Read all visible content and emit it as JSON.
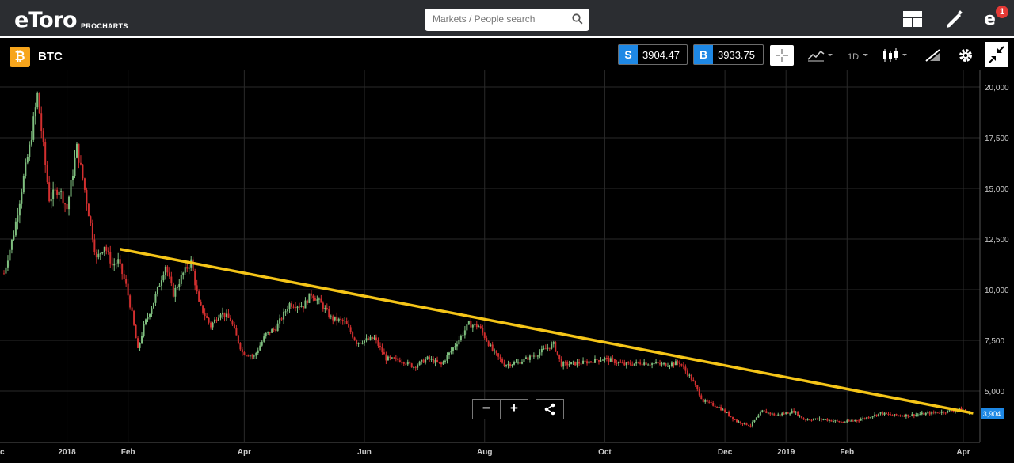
{
  "header": {
    "logo_text": "eToro",
    "logo_sub": "PROCHARTS",
    "search_placeholder": "Markets / People search",
    "notification_count": "1"
  },
  "toolbar": {
    "symbol": "BTC",
    "sell_label": "S",
    "sell_price": "3904.47",
    "buy_label": "B",
    "buy_price": "3933.75",
    "timeframe": "1D"
  },
  "colors": {
    "up_candle": "#7fbf7f",
    "down_candle": "#d32f2f",
    "trendline": "#f5c518",
    "price_tag": "#1e88e5",
    "grid": "#2a2a2a"
  },
  "chart_data": {
    "type": "candlestick",
    "title": "",
    "xlabel": "",
    "ylabel": "",
    "ylim": [
      2000,
      20800
    ],
    "x_ticks": [
      "c",
      "2018",
      "Feb",
      "Apr",
      "Jun",
      "Aug",
      "Oct",
      "Dec",
      "2019",
      "Feb",
      "Apr"
    ],
    "x_tick_dates": [
      "2017-12-01",
      "2018-01-01",
      "2018-02-01",
      "2018-04-01",
      "2018-06-01",
      "2018-08-01",
      "2018-10-01",
      "2018-12-01",
      "2019-01-01",
      "2019-02-01",
      "2019-04-01"
    ],
    "y_ticks": [
      "20,000",
      "17,500",
      "15,000",
      "12,500",
      "10,000",
      "7,500",
      "5,000"
    ],
    "y_tick_values": [
      20000,
      17500,
      15000,
      12500,
      10000,
      7500,
      5000
    ],
    "last_price_label": "3,904",
    "last_price": 3904,
    "close_series": [
      [
        "2017-11-30",
        10800
      ],
      [
        "2017-12-05",
        12800
      ],
      [
        "2017-12-10",
        15500
      ],
      [
        "2017-12-13",
        17000
      ],
      [
        "2017-12-17",
        19600
      ],
      [
        "2017-12-20",
        17000
      ],
      [
        "2017-12-23",
        14500
      ],
      [
        "2017-12-28",
        15000
      ],
      [
        "2018-01-01",
        14000
      ],
      [
        "2018-01-06",
        17000
      ],
      [
        "2018-01-09",
        15500
      ],
      [
        "2018-01-12",
        13800
      ],
      [
        "2018-01-16",
        11500
      ],
      [
        "2018-01-20",
        12200
      ],
      [
        "2018-01-24",
        11200
      ],
      [
        "2018-01-27",
        11400
      ],
      [
        "2018-01-31",
        10200
      ],
      [
        "2018-02-03",
        8800
      ],
      [
        "2018-02-06",
        7000
      ],
      [
        "2018-02-09",
        8200
      ],
      [
        "2018-02-14",
        9400
      ],
      [
        "2018-02-20",
        11200
      ],
      [
        "2018-02-24",
        9800
      ],
      [
        "2018-03-01",
        10800
      ],
      [
        "2018-03-05",
        11400
      ],
      [
        "2018-03-09",
        9300
      ],
      [
        "2018-03-15",
        8200
      ],
      [
        "2018-03-20",
        8900
      ],
      [
        "2018-03-25",
        8500
      ],
      [
        "2018-03-31",
        6900
      ],
      [
        "2018-04-06",
        6700
      ],
      [
        "2018-04-12",
        7800
      ],
      [
        "2018-04-17",
        8100
      ],
      [
        "2018-04-24",
        9300
      ],
      [
        "2018-05-01",
        9200
      ],
      [
        "2018-05-05",
        9800
      ],
      [
        "2018-05-10",
        9300
      ],
      [
        "2018-05-15",
        8600
      ],
      [
        "2018-05-22",
        8400
      ],
      [
        "2018-05-28",
        7400
      ],
      [
        "2018-06-06",
        7600
      ],
      [
        "2018-06-12",
        6600
      ],
      [
        "2018-06-20",
        6500
      ],
      [
        "2018-06-26",
        6200
      ],
      [
        "2018-07-03",
        6600
      ],
      [
        "2018-07-10",
        6300
      ],
      [
        "2018-07-18",
        7400
      ],
      [
        "2018-07-24",
        8300
      ],
      [
        "2018-07-29",
        8200
      ],
      [
        "2018-08-05",
        7000
      ],
      [
        "2018-08-11",
        6300
      ],
      [
        "2018-08-18",
        6400
      ],
      [
        "2018-08-27",
        6800
      ],
      [
        "2018-09-05",
        7300
      ],
      [
        "2018-09-09",
        6300
      ],
      [
        "2018-09-20",
        6400
      ],
      [
        "2018-10-01",
        6600
      ],
      [
        "2018-10-11",
        6300
      ],
      [
        "2018-10-20",
        6400
      ],
      [
        "2018-10-31",
        6300
      ],
      [
        "2018-11-08",
        6400
      ],
      [
        "2018-11-14",
        5600
      ],
      [
        "2018-11-20",
        4500
      ],
      [
        "2018-11-28",
        4200
      ],
      [
        "2018-12-07",
        3500
      ],
      [
        "2018-12-14",
        3300
      ],
      [
        "2018-12-20",
        4000
      ],
      [
        "2018-12-27",
        3800
      ],
      [
        "2019-01-05",
        4000
      ],
      [
        "2019-01-10",
        3600
      ],
      [
        "2019-01-20",
        3600
      ],
      [
        "2019-01-30",
        3450
      ],
      [
        "2019-02-08",
        3600
      ],
      [
        "2019-02-18",
        3900
      ],
      [
        "2019-02-24",
        3800
      ],
      [
        "2019-03-04",
        3800
      ],
      [
        "2019-03-15",
        3900
      ],
      [
        "2019-03-24",
        4000
      ],
      [
        "2019-03-30",
        4100
      ],
      [
        "2019-04-04",
        3904
      ]
    ],
    "trendline": {
      "start": [
        "2018-01-28",
        12000
      ],
      "end": [
        "2019-04-06",
        3904
      ]
    }
  }
}
